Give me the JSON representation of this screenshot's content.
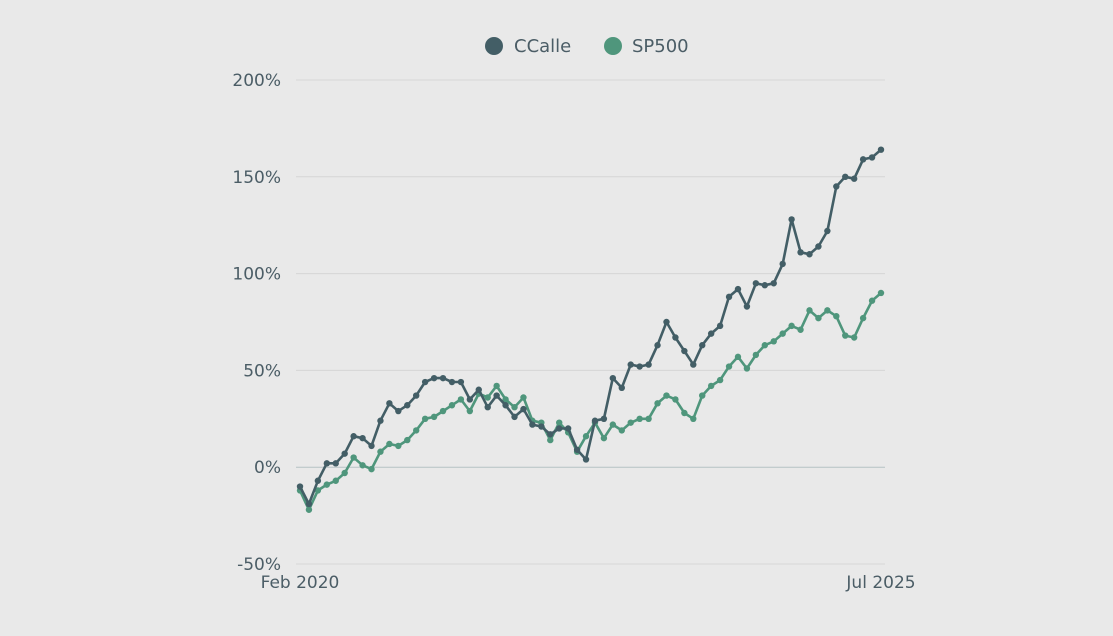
{
  "chart_data": {
    "type": "line",
    "x_start_label": "Feb 2020",
    "x_end_label": "Jul 2025",
    "ylim": [
      -50,
      200
    ],
    "yticks": [
      200,
      150,
      100,
      50,
      0,
      -50
    ],
    "ytick_labels": [
      "200%",
      "150%",
      "100%",
      "50%",
      "0%",
      "-50%"
    ],
    "grid": true,
    "legend_position": "top-center",
    "series": [
      {
        "name": "CCalle",
        "color": "#435e66",
        "values": [
          -10,
          -19,
          -7,
          2,
          2,
          7,
          16,
          15,
          11,
          24,
          33,
          29,
          32,
          37,
          44,
          46,
          46,
          44,
          44,
          35,
          40,
          31,
          37,
          32,
          26,
          30,
          22,
          21,
          17,
          20,
          20,
          9,
          4,
          24,
          25,
          46,
          41,
          53,
          52,
          53,
          63,
          75,
          67,
          60,
          53,
          63,
          69,
          73,
          88,
          92,
          83,
          95,
          94,
          95,
          105,
          128,
          111,
          110,
          114,
          122,
          145,
          150,
          149,
          159,
          160,
          164
        ]
      },
      {
        "name": "SP500",
        "color": "#4f967c",
        "values": [
          -12,
          -22,
          -12,
          -9,
          -7,
          -3,
          5,
          1,
          -1,
          8,
          12,
          11,
          14,
          19,
          25,
          26,
          29,
          32,
          35,
          29,
          38,
          36,
          42,
          35,
          31,
          36,
          24,
          23,
          14,
          23,
          18,
          8,
          16,
          23,
          15,
          22,
          19,
          23,
          25,
          25,
          33,
          37,
          35,
          28,
          25,
          37,
          42,
          45,
          52,
          57,
          51,
          58,
          63,
          65,
          69,
          73,
          71,
          81,
          77,
          81,
          78,
          68,
          67,
          77,
          86,
          90
        ]
      }
    ]
  }
}
